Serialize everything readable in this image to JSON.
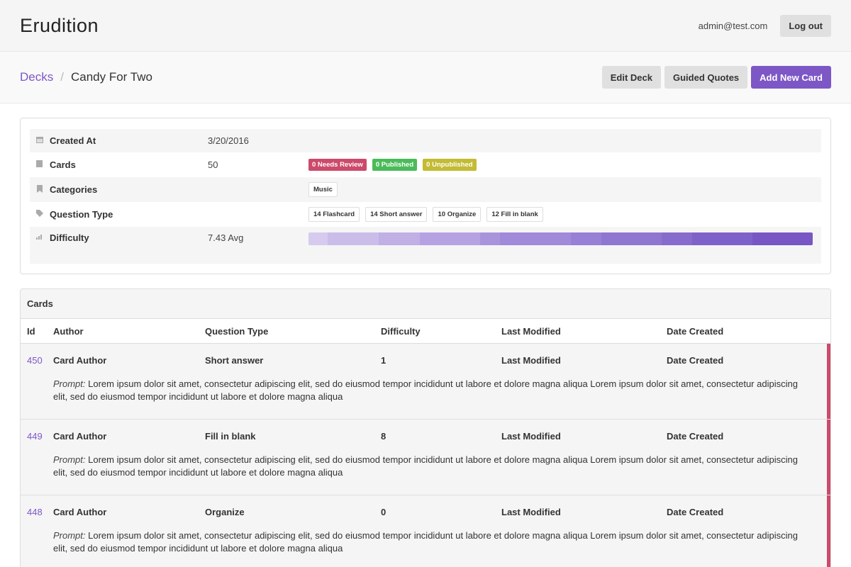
{
  "app": {
    "title": "Erudition"
  },
  "user": {
    "email": "admin@test.com",
    "logout_label": "Log out"
  },
  "breadcrumb": {
    "root": "Decks",
    "separator": "/",
    "current": "Candy For Two"
  },
  "actions": {
    "edit": "Edit Deck",
    "guided": "Guided Quotes",
    "add": "Add New Card"
  },
  "deck": {
    "created_label": "Created At",
    "created_value": "3/20/2016",
    "cards_label": "Cards",
    "cards_value": "50",
    "status": {
      "needs_review": "0 Needs Review",
      "published": "0 Published",
      "unpublished": "0 Unpublished"
    },
    "categories_label": "Categories",
    "categories": [
      "Music"
    ],
    "qtype_label": "Question Type",
    "qtypes": [
      "14 Flashcard",
      "14 Short answer",
      "10 Organize",
      "12 Fill in blank"
    ],
    "difficulty_label": "Difficulty",
    "difficulty_value": "7.43 Avg",
    "difficulty_segments": [
      {
        "weight": 27,
        "color": "#d6cbee"
      },
      {
        "weight": 72,
        "color": "#cbbdea"
      },
      {
        "weight": 58,
        "color": "#c0b0e6"
      },
      {
        "weight": 85,
        "color": "#b6a2e2"
      },
      {
        "weight": 28,
        "color": "#a994dc"
      },
      {
        "weight": 100,
        "color": "#a08ad9"
      },
      {
        "weight": 43,
        "color": "#9780d5"
      },
      {
        "weight": 85,
        "color": "#8f76d1"
      },
      {
        "weight": 43,
        "color": "#876ccd"
      },
      {
        "weight": 85,
        "color": "#7f62c9"
      },
      {
        "weight": 85,
        "color": "#7857c5"
      }
    ]
  },
  "cards": {
    "title": "Cards",
    "columns": [
      "Id",
      "Author",
      "Question Type",
      "Difficulty",
      "Last Modified",
      "Date Created"
    ],
    "prompt_label": "Prompt:",
    "rows": [
      {
        "id": "450",
        "author": "Card Author",
        "qtype": "Short answer",
        "difficulty": "1",
        "modified": "Last Modified",
        "created": "Date Created",
        "prompt": "Lorem ipsum dolor sit amet, consectetur adipiscing elit, sed do eiusmod tempor incididunt ut labore et dolore magna aliqua Lorem ipsum dolor sit amet, consectetur adipiscing elit, sed do eiusmod tempor incididunt ut labore et dolore magna aliqua"
      },
      {
        "id": "449",
        "author": "Card Author",
        "qtype": "Fill in blank",
        "difficulty": "8",
        "modified": "Last Modified",
        "created": "Date Created",
        "prompt": "Lorem ipsum dolor sit amet, consectetur adipiscing elit, sed do eiusmod tempor incididunt ut labore et dolore magna aliqua Lorem ipsum dolor sit amet, consectetur adipiscing elit, sed do eiusmod tempor incididunt ut labore et dolore magna aliqua"
      },
      {
        "id": "448",
        "author": "Card Author",
        "qtype": "Organize",
        "difficulty": "0",
        "modified": "Last Modified",
        "created": "Date Created",
        "prompt": "Lorem ipsum dolor sit amet, consectetur adipiscing elit, sed do eiusmod tempor incididunt ut labore et dolore magna aliqua Lorem ipsum dolor sit amet, consectetur adipiscing elit, sed do eiusmod tempor incididunt ut labore et dolore magna aliqua"
      }
    ]
  },
  "colors": {
    "accent": "#7d57c6",
    "review": "#cc4a6a",
    "published": "#4bbb5a",
    "unpublished": "#c3bb33"
  }
}
